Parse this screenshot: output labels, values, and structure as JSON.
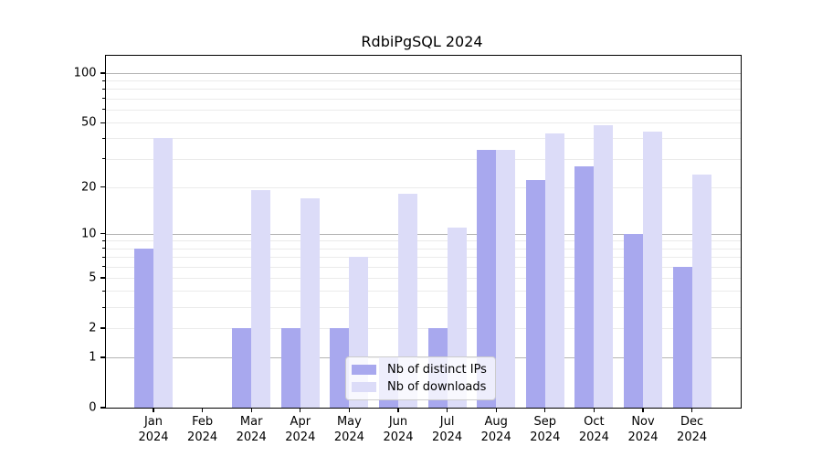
{
  "title": "RdbiPgSQL 2024",
  "chart_data": {
    "type": "bar",
    "title": "RdbiPgSQL 2024",
    "categories": [
      "Jan",
      "Feb",
      "Mar",
      "Apr",
      "May",
      "Jun",
      "Jul",
      "Aug",
      "Sep",
      "Oct",
      "Nov",
      "Dec"
    ],
    "year": "2024",
    "series": [
      {
        "name": "Nb of distinct IPs",
        "color": "#a8a8ee",
        "values": [
          8,
          0,
          2,
          2,
          2,
          1,
          2,
          34,
          22,
          27,
          10,
          6
        ]
      },
      {
        "name": "Nb of downloads",
        "color": "#dcdcf8",
        "values": [
          40,
          0,
          19,
          17,
          7,
          18,
          11,
          34,
          43,
          48,
          44,
          24
        ]
      }
    ],
    "xlabel": "",
    "ylabel": "",
    "y_scale": "log1p",
    "y_ticks": [
      0,
      1,
      2,
      5,
      10,
      20,
      50,
      100
    ],
    "y_minor_gridlines": [
      2,
      3,
      4,
      5,
      6,
      7,
      8,
      9,
      20,
      30,
      40,
      50,
      60,
      70,
      80,
      90
    ],
    "y_major_gridlines": [
      1,
      10,
      100
    ],
    "ylim": [
      0,
      127
    ],
    "grid": "horizontal",
    "legend_position": "bottom-center",
    "colors": {
      "major_grid": "#b3b3b3",
      "minor_grid": "#ebebeb",
      "axis": "#000000",
      "background": "#ffffff"
    }
  }
}
